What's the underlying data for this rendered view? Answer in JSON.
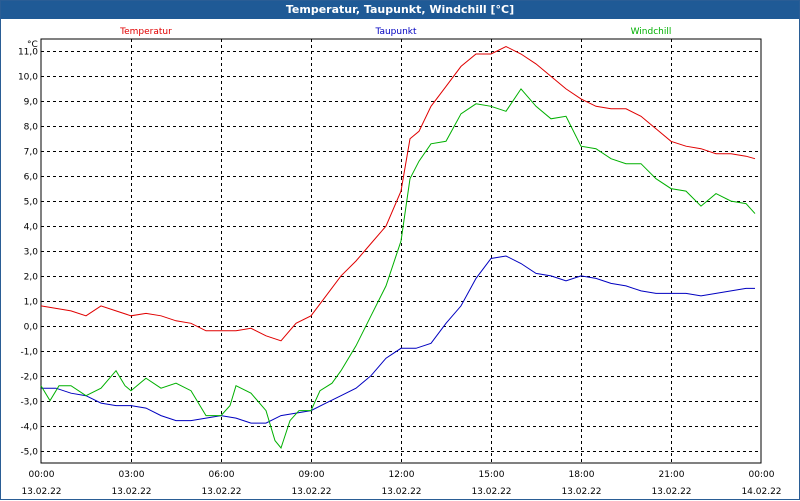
{
  "window": {
    "title": "Temperatur, Taupunkt, Windchill [°C]"
  },
  "chart_data": {
    "type": "line",
    "title": "Temperatur, Taupunkt, Windchill [°C]",
    "ylabel": "°C",
    "xlabel": "",
    "ylim": [
      -5.5,
      11.5
    ],
    "xlim": [
      0,
      24
    ],
    "grid": true,
    "yticks": [
      11.0,
      10.0,
      9.0,
      8.0,
      7.0,
      6.0,
      5.0,
      4.0,
      3.0,
      2.0,
      1.0,
      0.0,
      -1.0,
      -2.0,
      -3.0,
      -4.0,
      -5.0
    ],
    "ytick_labels": [
      "11,0",
      "10,0",
      "9,0",
      "8,0",
      "7,0",
      "6,0",
      "5,0",
      "4,0",
      "3,0",
      "2,0",
      "1,0",
      "0,0",
      "-1,0",
      "-2,0",
      "-3,0",
      "-4,0",
      "-5,0"
    ],
    "xticks": [
      {
        "hour": 0,
        "time": "00:00",
        "date": "13.02.22"
      },
      {
        "hour": 3,
        "time": "03:00",
        "date": "13.02.22"
      },
      {
        "hour": 6,
        "time": "06:00",
        "date": "13.02.22"
      },
      {
        "hour": 9,
        "time": "09:00",
        "date": "13.02.22"
      },
      {
        "hour": 12,
        "time": "12:00",
        "date": "13.02.22"
      },
      {
        "hour": 15,
        "time": "15:00",
        "date": "13.02.22"
      },
      {
        "hour": 18,
        "time": "18:00",
        "date": "13.02.22"
      },
      {
        "hour": 21,
        "time": "21:00",
        "date": "13.02.22"
      },
      {
        "hour": 24,
        "time": "00:00",
        "date": "14.02.22"
      }
    ],
    "series": [
      {
        "name": "Temperatur",
        "color": "#e00000",
        "points": [
          [
            0,
            0.8
          ],
          [
            0.5,
            0.7
          ],
          [
            1,
            0.6
          ],
          [
            1.5,
            0.4
          ],
          [
            2,
            0.8
          ],
          [
            2.5,
            0.6
          ],
          [
            3,
            0.4
          ],
          [
            3.5,
            0.5
          ],
          [
            4,
            0.4
          ],
          [
            4.5,
            0.2
          ],
          [
            5,
            0.1
          ],
          [
            5.5,
            -0.2
          ],
          [
            6,
            -0.2
          ],
          [
            6.5,
            -0.2
          ],
          [
            7,
            -0.1
          ],
          [
            7.5,
            -0.4
          ],
          [
            8,
            -0.6
          ],
          [
            8.5,
            0.1
          ],
          [
            9,
            0.4
          ],
          [
            9.5,
            1.2
          ],
          [
            10,
            2.0
          ],
          [
            10.5,
            2.6
          ],
          [
            11,
            3.3
          ],
          [
            11.5,
            4.0
          ],
          [
            12,
            5.4
          ],
          [
            12.3,
            7.5
          ],
          [
            12.6,
            7.8
          ],
          [
            13,
            8.8
          ],
          [
            13.5,
            9.6
          ],
          [
            14,
            10.4
          ],
          [
            14.5,
            10.9
          ],
          [
            15,
            10.9
          ],
          [
            15.5,
            11.2
          ],
          [
            16,
            10.9
          ],
          [
            16.5,
            10.5
          ],
          [
            17,
            10.0
          ],
          [
            17.5,
            9.5
          ],
          [
            18,
            9.1
          ],
          [
            18.5,
            8.8
          ],
          [
            19,
            8.7
          ],
          [
            19.5,
            8.7
          ],
          [
            20,
            8.4
          ],
          [
            20.5,
            7.9
          ],
          [
            21,
            7.4
          ],
          [
            21.5,
            7.2
          ],
          [
            22,
            7.1
          ],
          [
            22.5,
            6.9
          ],
          [
            23,
            6.9
          ],
          [
            23.5,
            6.8
          ],
          [
            23.8,
            6.7
          ]
        ]
      },
      {
        "name": "Taupunkt",
        "color": "#0000c0",
        "points": [
          [
            0,
            -2.5
          ],
          [
            0.5,
            -2.5
          ],
          [
            1,
            -2.7
          ],
          [
            1.5,
            -2.8
          ],
          [
            2,
            -3.1
          ],
          [
            2.5,
            -3.2
          ],
          [
            3,
            -3.2
          ],
          [
            3.5,
            -3.3
          ],
          [
            4,
            -3.6
          ],
          [
            4.5,
            -3.8
          ],
          [
            5,
            -3.8
          ],
          [
            5.5,
            -3.7
          ],
          [
            6,
            -3.6
          ],
          [
            6.5,
            -3.7
          ],
          [
            7,
            -3.9
          ],
          [
            7.5,
            -3.9
          ],
          [
            8,
            -3.6
          ],
          [
            8.5,
            -3.5
          ],
          [
            9,
            -3.4
          ],
          [
            9.5,
            -3.1
          ],
          [
            10,
            -2.8
          ],
          [
            10.5,
            -2.5
          ],
          [
            11,
            -2.0
          ],
          [
            11.5,
            -1.3
          ],
          [
            12,
            -0.9
          ],
          [
            12.5,
            -0.9
          ],
          [
            13,
            -0.7
          ],
          [
            13.5,
            0.1
          ],
          [
            14,
            0.8
          ],
          [
            14.5,
            1.9
          ],
          [
            15,
            2.7
          ],
          [
            15.5,
            2.8
          ],
          [
            16,
            2.5
          ],
          [
            16.5,
            2.1
          ],
          [
            17,
            2.0
          ],
          [
            17.5,
            1.8
          ],
          [
            18,
            2.0
          ],
          [
            18.5,
            1.9
          ],
          [
            19,
            1.7
          ],
          [
            19.5,
            1.6
          ],
          [
            20,
            1.4
          ],
          [
            20.5,
            1.3
          ],
          [
            21,
            1.3
          ],
          [
            21.5,
            1.3
          ],
          [
            22,
            1.2
          ],
          [
            22.5,
            1.3
          ],
          [
            23,
            1.4
          ],
          [
            23.5,
            1.5
          ],
          [
            23.8,
            1.5
          ]
        ]
      },
      {
        "name": "Windchill",
        "color": "#00b000",
        "points": [
          [
            0,
            -2.4
          ],
          [
            0.3,
            -3.0
          ],
          [
            0.6,
            -2.4
          ],
          [
            1,
            -2.4
          ],
          [
            1.5,
            -2.8
          ],
          [
            2,
            -2.5
          ],
          [
            2.5,
            -1.8
          ],
          [
            2.8,
            -2.4
          ],
          [
            3,
            -2.6
          ],
          [
            3.5,
            -2.1
          ],
          [
            4,
            -2.5
          ],
          [
            4.5,
            -2.3
          ],
          [
            5,
            -2.6
          ],
          [
            5.5,
            -3.6
          ],
          [
            6,
            -3.6
          ],
          [
            6.3,
            -3.2
          ],
          [
            6.5,
            -2.4
          ],
          [
            7,
            -2.7
          ],
          [
            7.5,
            -3.4
          ],
          [
            7.8,
            -4.6
          ],
          [
            8,
            -4.9
          ],
          [
            8.3,
            -3.8
          ],
          [
            8.6,
            -3.4
          ],
          [
            9,
            -3.4
          ],
          [
            9.3,
            -2.6
          ],
          [
            9.7,
            -2.3
          ],
          [
            10,
            -1.8
          ],
          [
            10.5,
            -0.8
          ],
          [
            11,
            0.4
          ],
          [
            11.5,
            1.6
          ],
          [
            12,
            3.4
          ],
          [
            12.3,
            5.9
          ],
          [
            12.6,
            6.6
          ],
          [
            13,
            7.3
          ],
          [
            13.5,
            7.4
          ],
          [
            14,
            8.5
          ],
          [
            14.5,
            8.9
          ],
          [
            15,
            8.8
          ],
          [
            15.5,
            8.6
          ],
          [
            16,
            9.5
          ],
          [
            16.5,
            8.8
          ],
          [
            17,
            8.3
          ],
          [
            17.5,
            8.4
          ],
          [
            18,
            7.2
          ],
          [
            18.5,
            7.1
          ],
          [
            19,
            6.7
          ],
          [
            19.5,
            6.5
          ],
          [
            20,
            6.5
          ],
          [
            20.5,
            5.9
          ],
          [
            21,
            5.5
          ],
          [
            21.5,
            5.4
          ],
          [
            22,
            4.8
          ],
          [
            22.5,
            5.3
          ],
          [
            23,
            5.0
          ],
          [
            23.5,
            4.9
          ],
          [
            23.8,
            4.5
          ]
        ]
      }
    ],
    "legend": [
      {
        "name": "Temperatur",
        "color": "#e00000",
        "position": "left"
      },
      {
        "name": "Taupunkt",
        "color": "#0000c0",
        "position": "center"
      },
      {
        "name": "Windchill",
        "color": "#00b000",
        "position": "right"
      }
    ]
  }
}
